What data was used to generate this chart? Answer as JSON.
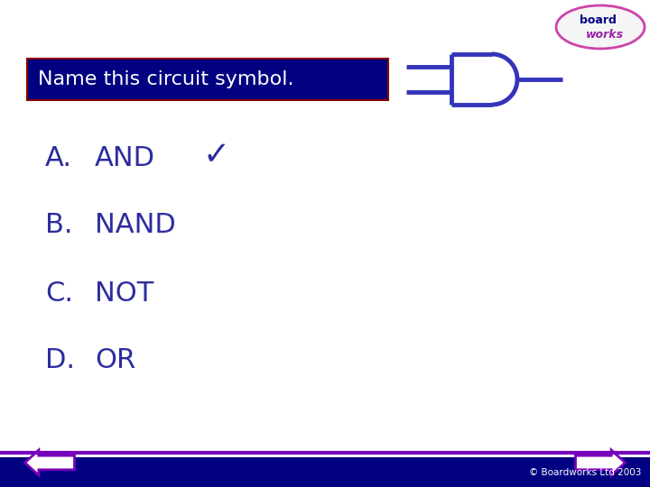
{
  "title": "Name this circuit symbol.",
  "title_bg": "#000080",
  "title_fg": "#ffffff",
  "title_border": "#8b0000",
  "options_letter": [
    "A.",
    "B.",
    "C.",
    "D."
  ],
  "options_text": [
    "AND",
    "NAND",
    "NOT",
    "OR"
  ],
  "correct_index": 0,
  "text_color": "#2d2d9f",
  "gate_color": "#3333bb",
  "gate_lw": 3.5,
  "bg_color": "#ffffff",
  "copyright": "© Boardworks Ltd 2003",
  "copyright_color": "#ffffff",
  "bottom_bar_color": "#000080",
  "bottom_line_color": "#7700bb",
  "arrow_fill": "#ffffff",
  "arrow_border": "#7700bb",
  "logo_border": "#cc44aa",
  "logo_text1_color": "#000080",
  "logo_text2_color": "#9922aa"
}
